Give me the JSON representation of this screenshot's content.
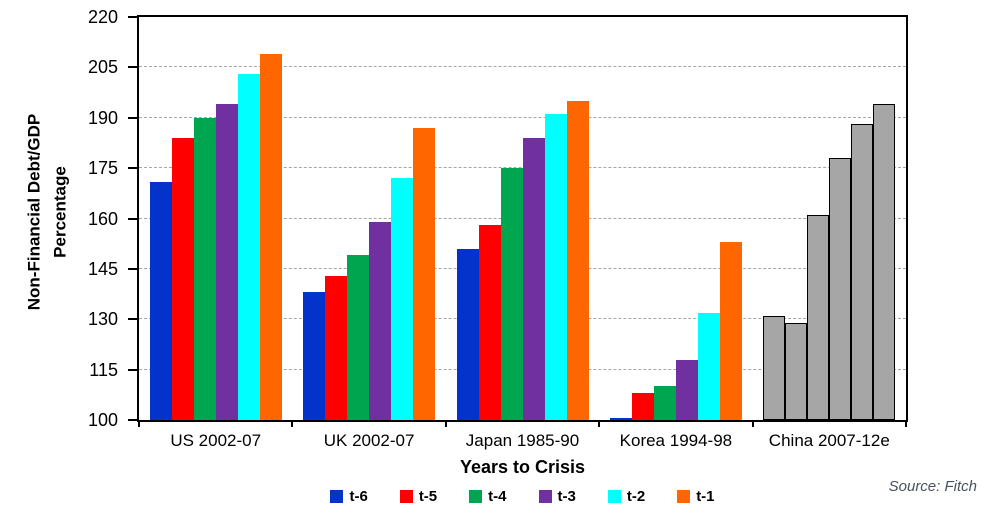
{
  "source": "Source: Fitch",
  "chart_data": {
    "type": "bar",
    "title": "",
    "xlabel": "Years to Crisis",
    "ylabel": "Non-Financial Debt/GDP Percentage",
    "ylabel_lines": [
      "Non-Financial Debt/GDP",
      "Percentage"
    ],
    "categories": [
      "US 2002-07",
      "UK 2002-07",
      "Japan 1985-90",
      "Korea 1994-98",
      "China 2007-12e"
    ],
    "series": [
      {
        "name": "t-6",
        "color": "#0433cc",
        "values": [
          171,
          138,
          151,
          100,
          131
        ]
      },
      {
        "name": "t-5",
        "color": "#ff0000",
        "values": [
          184,
          143,
          158,
          108,
          129
        ]
      },
      {
        "name": "t-4",
        "color": "#00a550",
        "values": [
          190,
          149,
          175,
          110,
          161
        ]
      },
      {
        "name": "t-3",
        "color": "#7030a0",
        "values": [
          194,
          159,
          184,
          118,
          178
        ]
      },
      {
        "name": "t-2",
        "color": "#00ffff",
        "values": [
          203,
          172,
          191,
          132,
          188
        ]
      },
      {
        "name": "t-1",
        "color": "#ff6600",
        "values": [
          209,
          187,
          195,
          153,
          194
        ]
      }
    ],
    "ylim": [
      100,
      220
    ],
    "yticks": [
      100,
      115,
      130,
      145,
      160,
      175,
      190,
      205,
      220
    ],
    "grid": "horizontal-dashed",
    "gridline_color": "#a6a6a6",
    "axis_color": "#000000",
    "legend_position": "bottom",
    "special_category": {
      "index": 4,
      "fill": "#a6a6a6",
      "border": "#000000",
      "note": "China 2007-12e bars are uniform gray with black outline"
    }
  }
}
